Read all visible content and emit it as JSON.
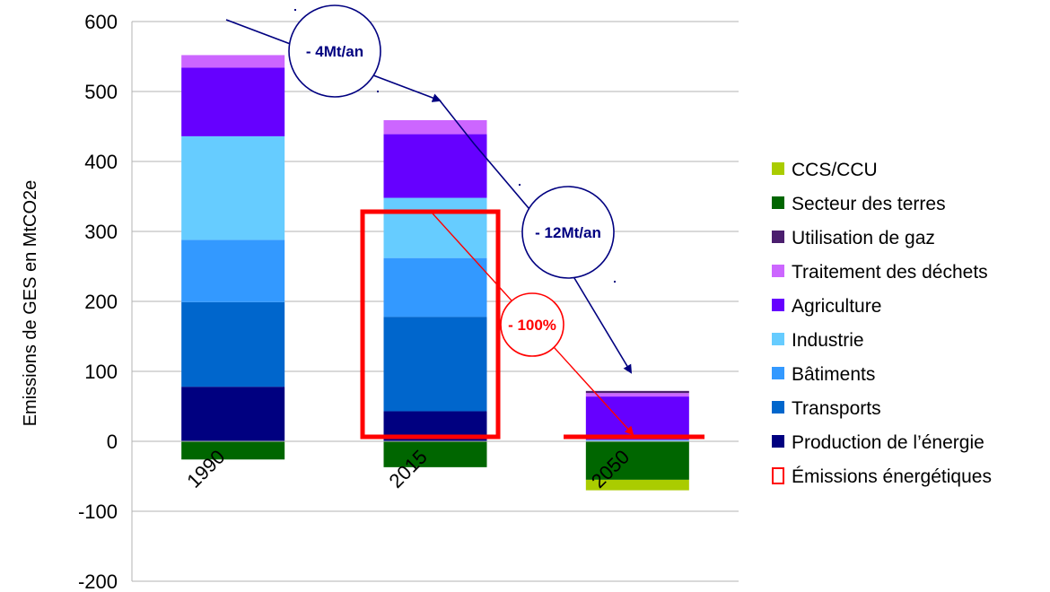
{
  "chart_data": {
    "type": "bar",
    "stacked": true,
    "title": "",
    "xlabel": "",
    "ylabel": "Emissions de GES en MtCO2e",
    "ylim": [
      -200,
      600
    ],
    "yticks": [
      600,
      500,
      400,
      300,
      200,
      100,
      0,
      -100,
      -200
    ],
    "categories": [
      "1990",
      "2015",
      "2050"
    ],
    "grid": true,
    "legend_position": "right",
    "series": [
      {
        "name": "Production de l’énergie",
        "color": "#000080",
        "values": [
          78,
          43,
          0
        ]
      },
      {
        "name": "Transports",
        "color": "#0066CC",
        "values": [
          121,
          135,
          0
        ]
      },
      {
        "name": "Bâtiments",
        "color": "#3399FF",
        "values": [
          89,
          84,
          0
        ]
      },
      {
        "name": "Industrie",
        "color": "#66CCFF",
        "values": [
          148,
          86,
          2
        ]
      },
      {
        "name": "Agriculture",
        "color": "#6600FF",
        "values": [
          98,
          91,
          62
        ]
      },
      {
        "name": "Traitement des déchets",
        "color": "#CC66FF",
        "values": [
          18,
          20,
          5
        ]
      },
      {
        "name": "Utilisation de gaz",
        "color": "#4B1E6E",
        "values": [
          0,
          0,
          3
        ]
      },
      {
        "name": "Secteur des terres",
        "color": "#006600",
        "values": [
          -26,
          -37,
          -55
        ]
      },
      {
        "name": "CCS/CCU",
        "color": "#AACC00",
        "values": [
          0,
          0,
          -15
        ]
      }
    ],
    "legend_order": [
      "CCS/CCU",
      "Secteur des terres",
      "Utilisation de gaz",
      "Traitement des déchets",
      "Agriculture",
      "Industrie",
      "Bâtiments",
      "Transports",
      "Production de l’énergie"
    ],
    "extra_legend": {
      "label": "Émissions énergétiques",
      "color": "#FF0000"
    },
    "annotations": [
      {
        "text": "- 4Mt/an",
        "color": "#000080"
      },
      {
        "text": "- 12Mt/an",
        "color": "#000080"
      },
      {
        "text": "- 100%",
        "color": "#FF0000"
      }
    ]
  }
}
